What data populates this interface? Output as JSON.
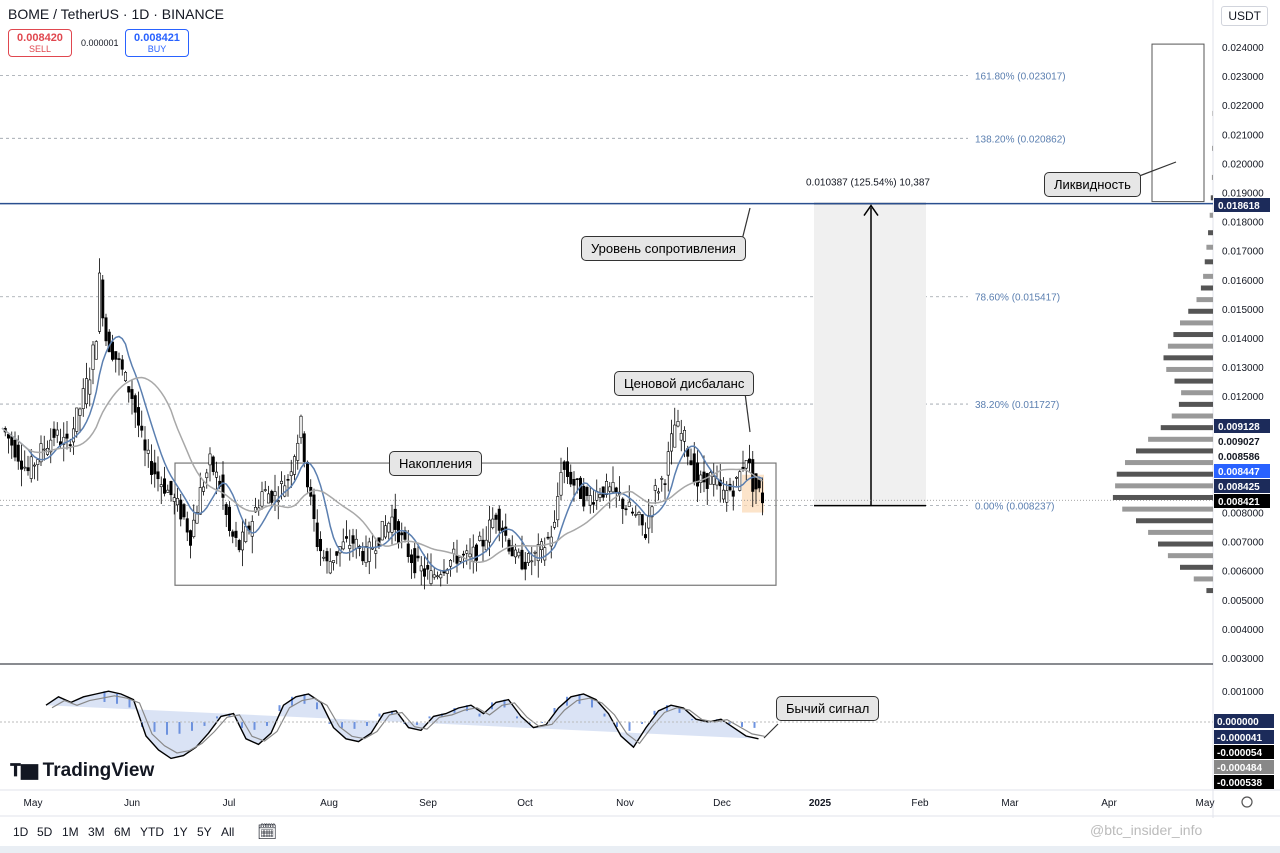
{
  "header": {
    "symbol_line": "BOME / TetherUS · 1D · BINANCE",
    "sell_price": "0.008420",
    "sell_label": "SELL",
    "spread": "0.000001",
    "buy_price": "0.008421",
    "buy_label": "BUY",
    "currency": "USDT"
  },
  "annotations": {
    "liquidity": "Ликвидность",
    "resistance": "Уровень сопротивления",
    "accumulation": "Накопления",
    "imbalance": "Ценовой дисбаланс",
    "bull_signal": "Бычий сигнал",
    "measure": "0.010387 (125.54%) 10,387"
  },
  "timeframes": [
    "1D",
    "5D",
    "1M",
    "3M",
    "6M",
    "YTD",
    "1Y",
    "5Y",
    "All"
  ],
  "branding": {
    "logo": "TradingView",
    "watermark": "@btc_insider_info"
  },
  "colors": {
    "bull": "#000000",
    "bear": "#555555",
    "ma1": "#5b7fb0",
    "ma2": "#a8a8a8",
    "resistance": "#2a4f8f",
    "macd_pos": "#4a78d8",
    "macd_neg": "#4a78d8"
  },
  "chart_data": {
    "type": "candlestick",
    "y_axis": {
      "min": 0.003,
      "max": 0.024,
      "ticks": [
        "0.024000",
        "0.023000",
        "0.022000",
        "0.021000",
        "0.020000",
        "0.019000",
        "0.018000",
        "0.017000",
        "0.016000",
        "0.015000",
        "0.014000",
        "0.013000",
        "0.012000",
        "0.011000",
        "0.010000",
        "0.009000",
        "0.008000",
        "0.007000",
        "0.006000",
        "0.005000",
        "0.004000",
        "0.003000"
      ],
      "price_labels": [
        {
          "value": 0.018618,
          "text": "0.018618",
          "style": "navy"
        },
        {
          "value": 0.009128,
          "text": "0.009128",
          "style": "navy"
        },
        {
          "value": 0.009027,
          "text": "0.009027",
          "style": "plain"
        },
        {
          "value": 0.008586,
          "text": "0.008586",
          "style": "plain"
        },
        {
          "value": 0.008447,
          "text": "0.008447",
          "style": "blue"
        },
        {
          "value": 0.008425,
          "text": "0.008425",
          "style": "navy"
        },
        {
          "value": 0.008421,
          "text": "0.008421",
          "style": "black"
        }
      ]
    },
    "x_axis": {
      "labels": [
        "May",
        "Jun",
        "Jul",
        "Aug",
        "Sep",
        "Oct",
        "Nov",
        "Dec",
        "2025",
        "Feb",
        "Mar",
        "Apr",
        "May"
      ]
    },
    "fib_levels": [
      {
        "text": "161.80% (0.023017)",
        "value": 0.023017
      },
      {
        "text": "138.20% (0.020862)",
        "value": 0.020862
      },
      {
        "text": "78.60% (0.015417)",
        "value": 0.015417
      },
      {
        "text": "38.20% (0.011727)",
        "value": 0.011727
      },
      {
        "text": "0.00% (0.008237)",
        "value": 0.008237
      }
    ],
    "resistance": 0.018618,
    "accumulation_box": {
      "top": 0.0097,
      "bottom": 0.0055
    },
    "price_path": [
      [
        0,
        0.0109
      ],
      [
        4,
        0.0102
      ],
      [
        8,
        0.0094
      ],
      [
        12,
        0.0101
      ],
      [
        16,
        0.0107
      ],
      [
        20,
        0.0103
      ],
      [
        24,
        0.0116
      ],
      [
        27,
        0.0128
      ],
      [
        29,
        0.0142
      ],
      [
        30,
        0.016
      ],
      [
        32,
        0.014
      ],
      [
        36,
        0.0131
      ],
      [
        40,
        0.012
      ],
      [
        44,
        0.01
      ],
      [
        48,
        0.0092
      ],
      [
        52,
        0.0086
      ],
      [
        56,
        0.0078
      ],
      [
        58,
        0.0072
      ],
      [
        61,
        0.0087
      ],
      [
        64,
        0.0097
      ],
      [
        67,
        0.009
      ],
      [
        70,
        0.0073
      ],
      [
        73,
        0.0068
      ],
      [
        76,
        0.0075
      ],
      [
        80,
        0.0087
      ],
      [
        84,
        0.0086
      ],
      [
        88,
        0.0092
      ],
      [
        92,
        0.011
      ],
      [
        94,
        0.009
      ],
      [
        97,
        0.007
      ],
      [
        100,
        0.0062
      ],
      [
        104,
        0.0068
      ],
      [
        108,
        0.007
      ],
      [
        112,
        0.0065
      ],
      [
        116,
        0.0072
      ],
      [
        120,
        0.0078
      ],
      [
        124,
        0.0068
      ],
      [
        128,
        0.0061
      ],
      [
        132,
        0.0058
      ],
      [
        136,
        0.0062
      ],
      [
        140,
        0.0065
      ],
      [
        144,
        0.0064
      ],
      [
        148,
        0.007
      ],
      [
        152,
        0.008
      ],
      [
        155,
        0.0072
      ],
      [
        158,
        0.0064
      ],
      [
        162,
        0.0063
      ],
      [
        166,
        0.0067
      ],
      [
        170,
        0.0075
      ],
      [
        172,
        0.0096
      ],
      [
        176,
        0.009
      ],
      [
        180,
        0.0084
      ],
      [
        184,
        0.0088
      ],
      [
        188,
        0.0087
      ],
      [
        192,
        0.0082
      ],
      [
        196,
        0.0077
      ],
      [
        198,
        0.0073
      ],
      [
        200,
        0.0085
      ],
      [
        204,
        0.0093
      ],
      [
        207,
        0.011
      ],
      [
        210,
        0.0105
      ],
      [
        214,
        0.009
      ],
      [
        218,
        0.0092
      ],
      [
        222,
        0.0086
      ],
      [
        226,
        0.009
      ],
      [
        229,
        0.01
      ],
      [
        231,
        0.009
      ],
      [
        234,
        0.0085
      ]
    ],
    "volume_profile": [
      [
        0.0217,
        1
      ],
      [
        0.0205,
        1
      ],
      [
        0.0195,
        2
      ],
      [
        0.0188,
        4
      ],
      [
        0.0182,
        6
      ],
      [
        0.0176,
        9
      ],
      [
        0.0171,
        12
      ],
      [
        0.0166,
        15
      ],
      [
        0.0161,
        18
      ],
      [
        0.0157,
        22
      ],
      [
        0.0153,
        30
      ],
      [
        0.0149,
        45
      ],
      [
        0.0145,
        60
      ],
      [
        0.0141,
        72
      ],
      [
        0.0137,
        82
      ],
      [
        0.0133,
        90
      ],
      [
        0.0129,
        85
      ],
      [
        0.0125,
        70
      ],
      [
        0.0121,
        58
      ],
      [
        0.0117,
        62
      ],
      [
        0.0113,
        75
      ],
      [
        0.0109,
        95
      ],
      [
        0.0105,
        118
      ],
      [
        0.0101,
        140
      ],
      [
        0.0097,
        160
      ],
      [
        0.0093,
        175
      ],
      [
        0.0089,
        178
      ],
      [
        0.0085,
        182
      ],
      [
        0.0081,
        165
      ],
      [
        0.0077,
        140
      ],
      [
        0.0073,
        118
      ],
      [
        0.0069,
        100
      ],
      [
        0.0065,
        82
      ],
      [
        0.0061,
        60
      ],
      [
        0.0057,
        35
      ],
      [
        0.0053,
        12
      ]
    ],
    "oscillator": {
      "ticks": [
        "0.001000",
        "-0.001000"
      ],
      "labels": [
        {
          "text": "0.000000",
          "style": "navy"
        },
        {
          "text": "-0.000041",
          "style": "navy"
        },
        {
          "text": "-0.000054",
          "style": "black"
        },
        {
          "text": "-0.000484",
          "style": "gray"
        },
        {
          "text": "-0.000538",
          "style": "black"
        }
      ],
      "series": [
        0.6,
        0.9,
        0.7,
        0.9,
        1.0,
        1.1,
        1.0,
        0.8,
        -0.5,
        -1.0,
        -1.3,
        -1.2,
        -0.9,
        -0.4,
        0.2,
        0.3,
        -0.6,
        -0.8,
        -0.4,
        0.6,
        0.9,
        1.0,
        0.7,
        -0.2,
        -0.6,
        -0.7,
        -0.4,
        0.3,
        0.4,
        -0.2,
        -0.3,
        0.2,
        0.3,
        0.5,
        0.6,
        0.3,
        0.7,
        0.8,
        0.2,
        -0.2,
        -0.1,
        0.5,
        0.9,
        1.0,
        0.8,
        0.3,
        -0.5,
        -0.9,
        -0.2,
        0.4,
        0.6,
        0.5,
        0.1,
        0.0,
        0.1,
        -0.2,
        -0.5,
        -0.6
      ]
    }
  }
}
